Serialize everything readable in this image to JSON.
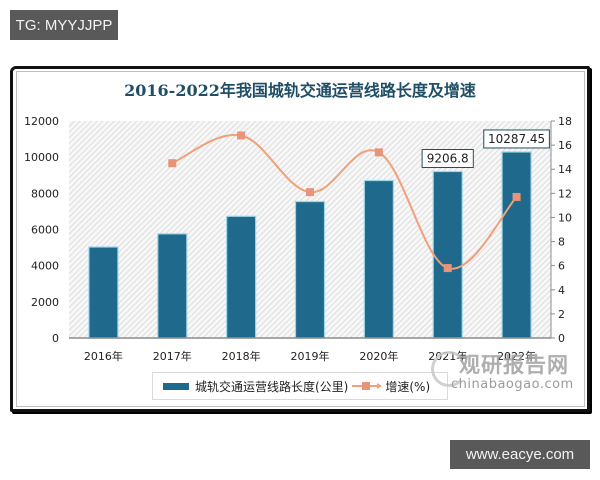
{
  "badges": {
    "top_left": "TG: MYYJJPP",
    "bottom_right": "www.eacye.com"
  },
  "watermark": {
    "cn": "观研报告网",
    "en": "chinabaogao.com"
  },
  "colors": {
    "bar": "#1f6a8c",
    "bar_edge": "#9fd6e6",
    "line": "#f0a07a",
    "marker": "#e8937a",
    "title": "#1f4e66"
  },
  "chart_data": {
    "type": "bar",
    "title": "2016-2022年我国城轨交通运营线路长度及增速",
    "categories": [
      "2016年",
      "2017年",
      "2018年",
      "2019年",
      "2020年",
      "2021年",
      "2022年"
    ],
    "series": [
      {
        "name": "城轨交通运营线路长度(公里)",
        "type": "bar",
        "axis": "left",
        "values": [
          5033,
          5761,
          6730,
          7545,
          8708,
          9206.8,
          10287.45
        ]
      },
      {
        "name": "增速(%)",
        "type": "line",
        "axis": "right",
        "values": [
          null,
          14.5,
          16.8,
          12.1,
          15.4,
          5.8,
          11.7
        ]
      }
    ],
    "data_labels": [
      {
        "category": "2021年",
        "text": "9206.8"
      },
      {
        "category": "2022年",
        "text": "10287.45"
      }
    ],
    "left_axis": {
      "ylim": [
        0,
        12000
      ],
      "ticks": [
        "0",
        "2000",
        "4000",
        "6000",
        "8000",
        "10000",
        "12000"
      ]
    },
    "right_axis": {
      "ylim": [
        0,
        18
      ],
      "ticks": [
        "0",
        "2",
        "4",
        "6",
        "8",
        "10",
        "12",
        "14",
        "16",
        "18"
      ]
    },
    "legend": {
      "position": "bottom",
      "items": [
        "城轨交通运营线路长度(公里)",
        "增速(%)"
      ]
    },
    "xlabel": "",
    "ylabel": "",
    "grid": false
  }
}
